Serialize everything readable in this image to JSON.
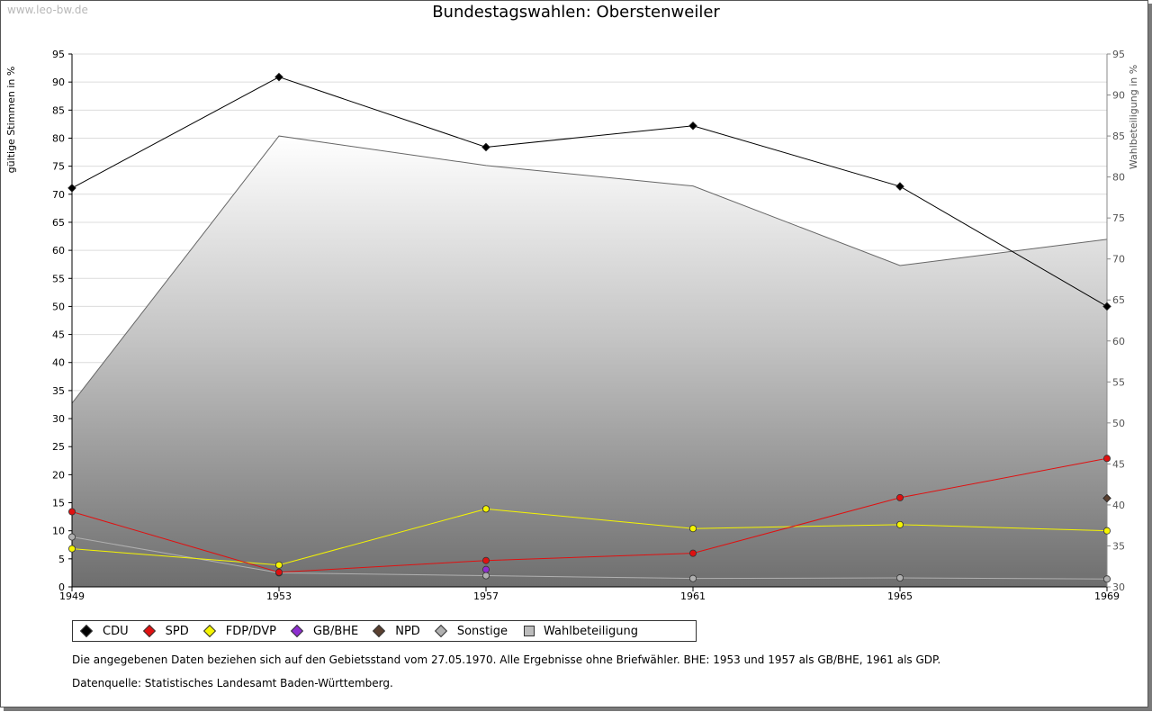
{
  "watermark": "www.leo-bw.de",
  "notes": {
    "line1": "Die angegebenen Daten beziehen sich auf den Gebietsstand vom 27.05.1970. Alle Ergebnisse ohne Briefwähler. BHE: 1953 und 1957 als GB/BHE, 1961 als GDP.",
    "line2": "Datenquelle: Statistisches Landesamt Baden-Württemberg."
  },
  "chart_data": {
    "type": "line",
    "title": "Bundestagswahlen: Oberstenweiler",
    "ylabel": "gültige Stimmen in %",
    "y2label": "Wahlbeteiligung in %",
    "categories": [
      "1949",
      "1953",
      "1957",
      "1961",
      "1965",
      "1969"
    ],
    "ylim": [
      0,
      95
    ],
    "yticks": [
      0,
      5,
      10,
      15,
      20,
      25,
      30,
      35,
      40,
      45,
      50,
      55,
      60,
      65,
      70,
      75,
      80,
      85,
      90,
      95
    ],
    "y2lim": [
      30,
      95
    ],
    "y2ticks": [
      30,
      35,
      40,
      45,
      50,
      55,
      60,
      65,
      70,
      75,
      80,
      85,
      90,
      95
    ],
    "grid": true,
    "legend_position": "bottom-left",
    "series": [
      {
        "name": "CDU",
        "color": "#000000",
        "values": [
          71.1,
          90.9,
          78.4,
          82.2,
          71.4,
          50.0
        ]
      },
      {
        "name": "SPD",
        "color": "#e01010",
        "values": [
          13.4,
          2.6,
          4.7,
          6.0,
          15.9,
          22.9
        ]
      },
      {
        "name": "FDP/DVP",
        "color": "#f5f500",
        "values": [
          6.8,
          3.9,
          13.9,
          10.4,
          11.1,
          10.0
        ]
      },
      {
        "name": "GB/BHE",
        "color": "#8e2ed0",
        "values": [
          null,
          null,
          3.1,
          null,
          null,
          null
        ]
      },
      {
        "name": "NPD",
        "color": "#5a4030",
        "values": [
          null,
          null,
          null,
          null,
          null,
          15.8
        ]
      },
      {
        "name": "Sonstige",
        "color": "#b0b0b0",
        "values": [
          8.9,
          2.5,
          2.0,
          1.5,
          1.6,
          1.4
        ]
      }
    ],
    "area": {
      "name": "Wahlbeteiligung",
      "values": [
        52.4,
        85.0,
        81.4,
        78.9,
        69.2,
        72.4
      ]
    }
  }
}
